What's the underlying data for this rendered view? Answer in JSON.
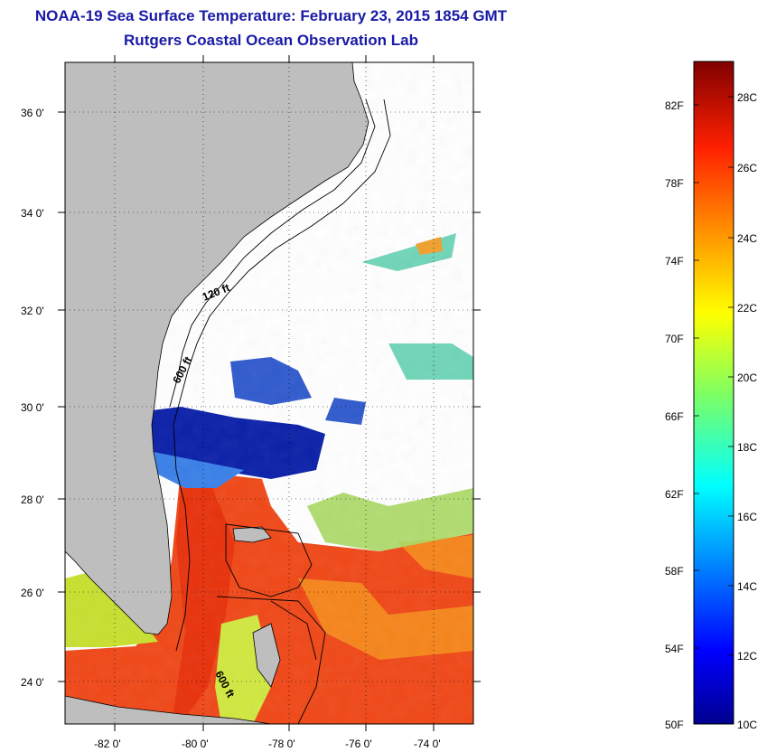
{
  "title": {
    "line1": "NOAA-19 Sea Surface Temperature:  February 23, 2015 1854 GMT",
    "line2": "Rutgers Coastal Ocean Observation Lab"
  },
  "map": {
    "lat_labels": [
      "36 0'",
      "34 0'",
      "32 0'",
      "30 0'",
      "28 0'",
      "26 0'",
      "24 0'"
    ],
    "lon_labels": [
      "-82 0'",
      "-80 0'",
      "-78 0'",
      "-76 0'",
      "-74 0'"
    ],
    "contour_labels": [
      "120 ft",
      "600 ft",
      "600 ft"
    ],
    "colors": {
      "land": "#bebebe",
      "cloud": "#ffffff",
      "cold": "#0a1aa0",
      "warm": "#f03a10"
    }
  },
  "colorbar": {
    "f_labels": [
      "82F",
      "78F",
      "74F",
      "70F",
      "66F",
      "62F",
      "58F",
      "54F",
      "50F"
    ],
    "c_labels": [
      "28C",
      "26C",
      "24C",
      "22C",
      "20C",
      "18C",
      "16C",
      "14C",
      "12C",
      "10C"
    ]
  }
}
